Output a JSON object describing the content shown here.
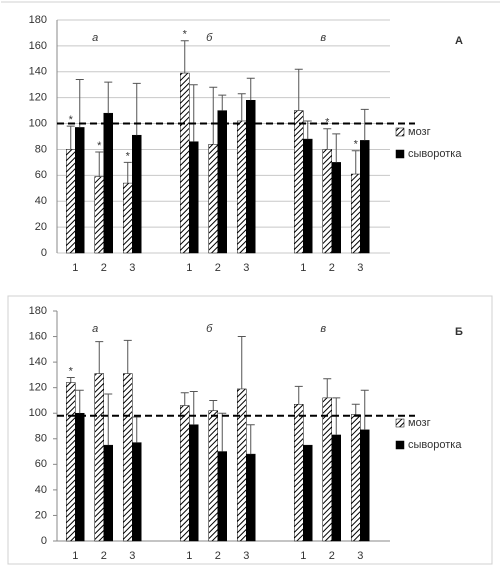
{
  "chart_data": [
    {
      "type": "bar",
      "panel_label": "А",
      "group_labels": [
        "а",
        "б",
        "в"
      ],
      "categories": [
        "1",
        "2",
        "3",
        null,
        "1",
        "2",
        "3",
        null,
        "1",
        "2",
        "3"
      ],
      "ylim": [
        0,
        180
      ],
      "yticks": [
        0,
        20,
        40,
        60,
        80,
        100,
        120,
        140,
        160,
        180
      ],
      "grid": true,
      "reference_line": 100,
      "legend": "right",
      "series": [
        {
          "name": "мозг",
          "pattern": "hatch",
          "color": "#000000",
          "values": [
            80,
            59,
            54,
            null,
            139,
            84,
            102,
            null,
            110,
            80,
            61
          ],
          "errors": [
            18,
            19,
            16,
            null,
            25,
            44,
            21,
            null,
            32,
            16,
            18
          ],
          "annotations": [
            "*",
            "*",
            "*",
            null,
            "*",
            null,
            null,
            null,
            null,
            "*",
            "*"
          ]
        },
        {
          "name": "сыворотка",
          "pattern": "solid",
          "color": "#000000",
          "values": [
            97,
            108,
            91,
            null,
            86,
            110,
            118,
            null,
            88,
            70,
            87
          ],
          "errors": [
            37,
            24,
            40,
            null,
            44,
            12,
            17,
            null,
            14,
            22,
            24
          ],
          "annotations": [
            null,
            null,
            null,
            null,
            null,
            null,
            null,
            null,
            null,
            null,
            null
          ]
        }
      ]
    },
    {
      "type": "bar",
      "panel_label": "Б",
      "group_labels": [
        "а",
        "б",
        "в"
      ],
      "categories": [
        "1",
        "2",
        "3",
        null,
        "1",
        "2",
        "3",
        null,
        "1",
        "2",
        "3"
      ],
      "ylim": [
        0,
        180
      ],
      "yticks": [
        0,
        20,
        40,
        60,
        80,
        100,
        120,
        140,
        160,
        180
      ],
      "grid": false,
      "reference_line": 98,
      "legend": "right",
      "series": [
        {
          "name": "мозг",
          "pattern": "hatch",
          "color": "#000000",
          "values": [
            124,
            131,
            131,
            null,
            106,
            102,
            119,
            null,
            107,
            112,
            99
          ],
          "errors": [
            4,
            25,
            26,
            null,
            10,
            8,
            41,
            null,
            14,
            15,
            8
          ],
          "annotations": [
            "*",
            null,
            null,
            null,
            null,
            null,
            null,
            null,
            null,
            null,
            null
          ]
        },
        {
          "name": "сыворотка",
          "pattern": "solid",
          "color": "#000000",
          "values": [
            100,
            75,
            77,
            null,
            91,
            70,
            68,
            null,
            75,
            83,
            87
          ],
          "errors": [
            18,
            40,
            20,
            null,
            26,
            30,
            23,
            null,
            null,
            29,
            31
          ],
          "annotations": [
            null,
            null,
            null,
            null,
            null,
            null,
            null,
            null,
            null,
            null,
            null
          ]
        }
      ]
    }
  ]
}
